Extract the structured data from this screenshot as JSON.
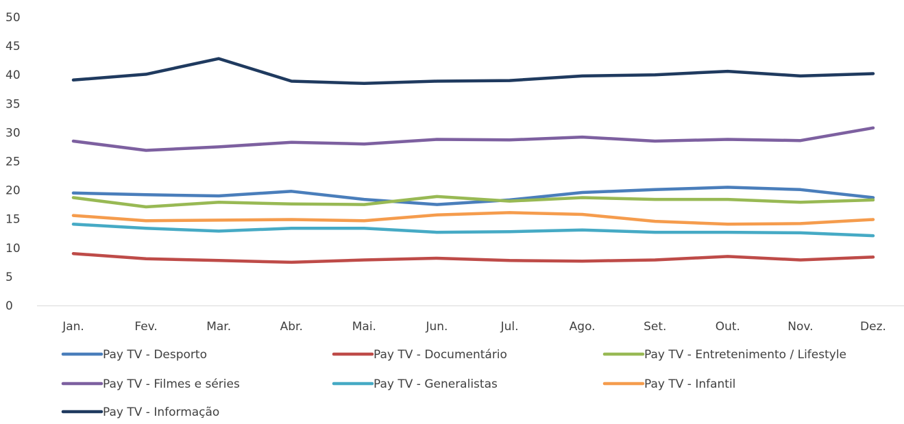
{
  "chart_data": {
    "type": "line",
    "title": "",
    "xlabel": "",
    "ylabel": "",
    "categories": [
      "Jan.",
      "Fev.",
      "Mar.",
      "Abr.",
      "Mai.",
      "Jun.",
      "Jul.",
      "Ago.",
      "Set.",
      "Out.",
      "Nov.",
      "Dez."
    ],
    "ylim": [
      0,
      50
    ],
    "yticks": [
      0,
      5,
      10,
      15,
      20,
      25,
      30,
      35,
      40,
      45,
      50
    ],
    "grid": false,
    "legend_position": "bottom",
    "series": [
      {
        "name": "Pay TV - Desporto",
        "color": "#4A7EBB",
        "values": [
          19.5,
          19.2,
          19.0,
          19.8,
          18.4,
          17.5,
          18.3,
          19.6,
          20.1,
          20.5,
          20.1,
          18.7
        ]
      },
      {
        "name": "Pay TV - Documentário",
        "color": "#BE4B48",
        "values": [
          9.0,
          8.1,
          7.8,
          7.5,
          7.9,
          8.2,
          7.8,
          7.7,
          7.9,
          8.5,
          7.9,
          8.4
        ]
      },
      {
        "name": "Pay TV - Entretenimento / Lifestyle",
        "color": "#98B954",
        "values": [
          18.7,
          17.1,
          17.9,
          17.6,
          17.5,
          18.9,
          18.1,
          18.7,
          18.4,
          18.4,
          17.9,
          18.3
        ]
      },
      {
        "name": "Pay TV - Filmes e séries",
        "color": "#7D60A0",
        "values": [
          28.5,
          26.9,
          27.5,
          28.3,
          28.0,
          28.8,
          28.7,
          29.2,
          28.5,
          28.8,
          28.6,
          30.8
        ]
      },
      {
        "name": "Pay TV - Generalistas",
        "color": "#46AAC5",
        "values": [
          14.1,
          13.4,
          12.9,
          13.4,
          13.4,
          12.7,
          12.8,
          13.1,
          12.7,
          12.7,
          12.6,
          12.1
        ]
      },
      {
        "name": "Pay TV - Infantil",
        "color": "#F59C4D",
        "values": [
          15.6,
          14.7,
          14.8,
          14.9,
          14.7,
          15.7,
          16.1,
          15.8,
          14.6,
          14.1,
          14.2,
          14.9
        ]
      },
      {
        "name": "Pay TV - Informação",
        "color": "#1F3A5F",
        "values": [
          39.1,
          40.1,
          42.8,
          38.9,
          38.5,
          38.9,
          39.0,
          39.8,
          40.0,
          40.6,
          39.8,
          40.2
        ]
      }
    ]
  }
}
